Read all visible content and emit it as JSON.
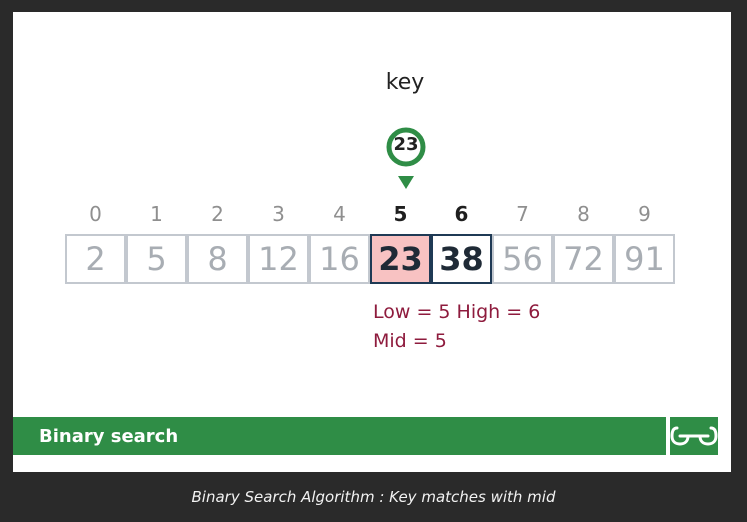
{
  "diagram": {
    "key_label": "key",
    "key_value": "23",
    "indices": [
      "0",
      "1",
      "2",
      "3",
      "4",
      "5",
      "6",
      "7",
      "8",
      "9"
    ],
    "values": [
      "2",
      "5",
      "8",
      "12",
      "16",
      "23",
      "38",
      "56",
      "72",
      "91"
    ],
    "low_index": 5,
    "high_index": 6,
    "status_line_1": "Low = 5 High = 6",
    "status_line_2": "Mid = 5",
    "colors": {
      "green": "#2f8d46",
      "low_fill": "#f8c2c2",
      "pointer_text": "#8e1b3d",
      "active_border": "#1f3a55"
    }
  },
  "footer": {
    "title": "Binary search",
    "logo_icon": "geeksforgeeks-logo-icon"
  },
  "caption": "Binary Search Algorithm : Key matches with mid"
}
